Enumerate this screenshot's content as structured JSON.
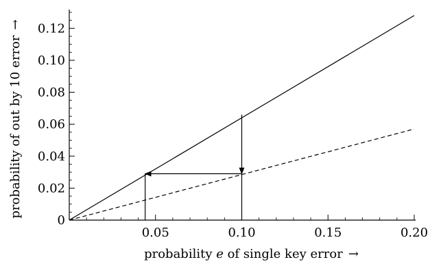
{
  "chart_data": {
    "type": "line",
    "xlabel_prefix": "probability ",
    "xlabel_var": "e",
    "xlabel_suffix": " of single key error",
    "xlabel_arrow": "→",
    "ylabel": "probability of out by 10 error",
    "ylabel_arrow": "→",
    "xlim": [
      0,
      0.2
    ],
    "ylim": [
      0,
      0.13
    ],
    "x_ticks": [
      0.05,
      0.1,
      0.15,
      0.2
    ],
    "x_tick_labels": [
      "0.05",
      "0.10",
      "0.15",
      "0.20"
    ],
    "y_ticks": [
      0,
      0.02,
      0.04,
      0.06,
      0.08,
      0.1,
      0.12
    ],
    "y_tick_labels": [
      "0",
      "0.02",
      "0.04",
      "0.06",
      "0.08",
      "0.10",
      "0.12"
    ],
    "series": [
      {
        "style": "solid",
        "x": [
          0,
          0.2
        ],
        "y": [
          0,
          0.128
        ]
      },
      {
        "style": "dashed",
        "x": [
          0,
          0.2
        ],
        "y": [
          0,
          0.057
        ]
      }
    ],
    "annotations": [
      {
        "kind": "vertical-line",
        "x": 0.044,
        "y0": 0,
        "y1": 0.029
      },
      {
        "kind": "vertical-line",
        "x": 0.1,
        "y0": 0,
        "y1": 0.029
      },
      {
        "kind": "arrow",
        "from": [
          0.1,
          0.066
        ],
        "to": [
          0.1,
          0.029
        ]
      },
      {
        "kind": "arrow",
        "from": [
          0.1,
          0.029
        ],
        "to": [
          0.044,
          0.029
        ]
      }
    ]
  }
}
